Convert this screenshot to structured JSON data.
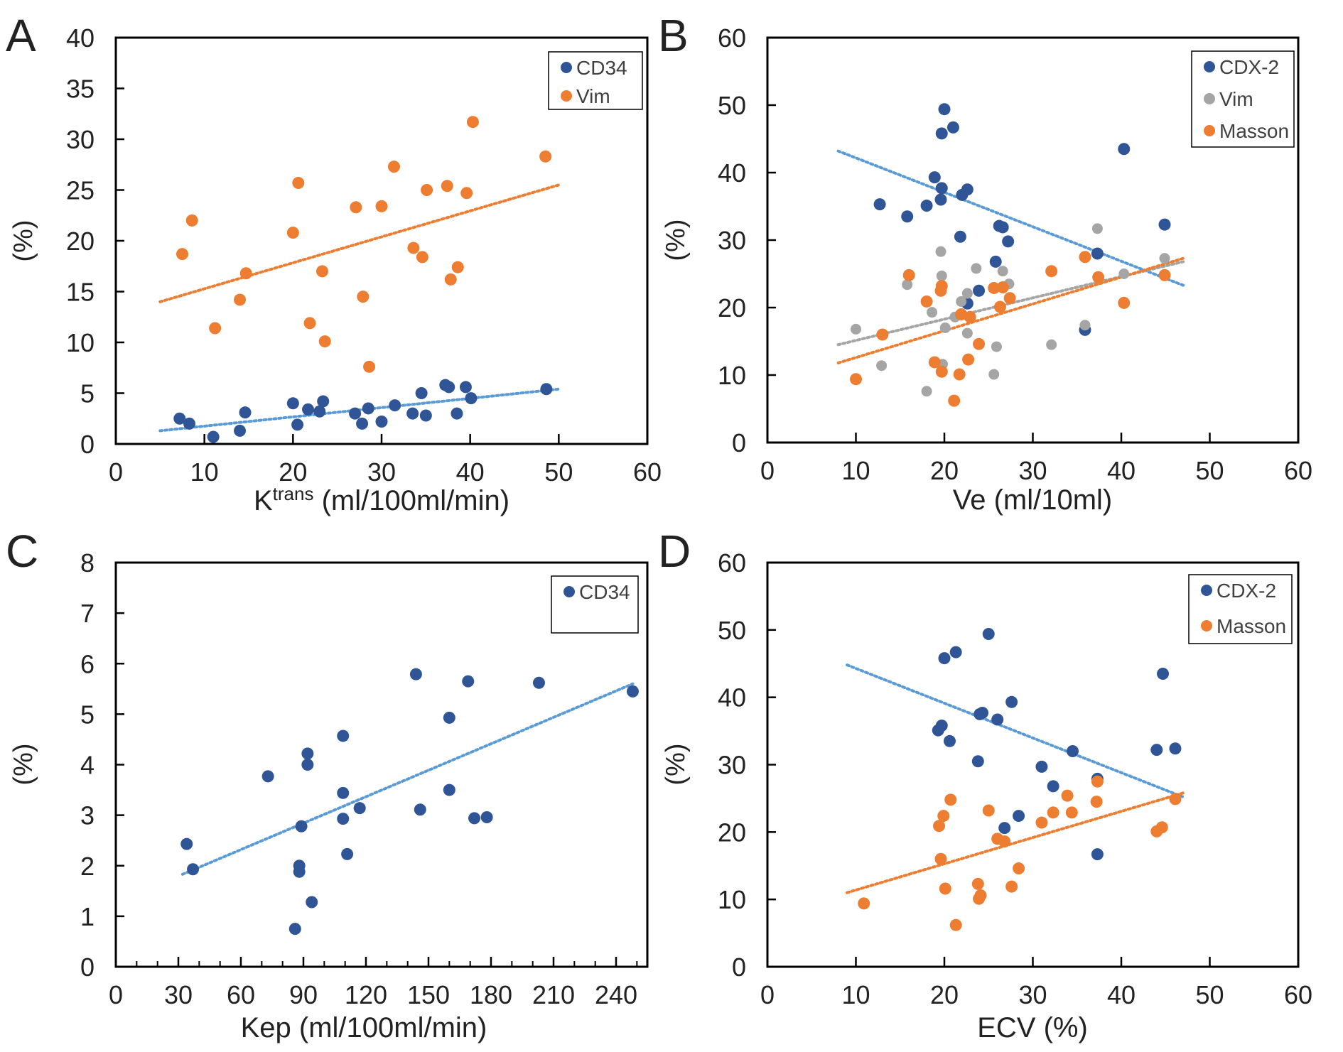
{
  "figure": {
    "panel_letters": [
      "A",
      "B",
      "C",
      "D"
    ]
  },
  "colors": {
    "blue": "#2F5597",
    "orange": "#ED7D31",
    "gray": "#A5A5A5",
    "trend_blue": "#5B9BD5",
    "trend_orange": "#ED7D31",
    "trend_gray": "#A5A5A5"
  },
  "chart_data": [
    {
      "panel": "A",
      "type": "scatter",
      "xlabel": "K",
      "xlabel_sup": "trans",
      "xlabel_rest": " (ml/100ml/min)",
      "ylabel": "(%)",
      "xlim": [
        0,
        60
      ],
      "ylim": [
        0,
        40
      ],
      "xticks": [
        0,
        10,
        20,
        30,
        40,
        50,
        60
      ],
      "yticks": [
        0,
        5,
        10,
        15,
        20,
        25,
        30,
        35,
        40
      ],
      "legend_position": "top-right",
      "series": [
        {
          "name": "CD34",
          "color": "blue",
          "points": [
            [
              7.2,
              2.5
            ],
            [
              8.3,
              2.0
            ],
            [
              11.0,
              0.7
            ],
            [
              14.0,
              1.3
            ],
            [
              14.6,
              3.1
            ],
            [
              20.0,
              4.0
            ],
            [
              20.5,
              1.9
            ],
            [
              21.7,
              3.4
            ],
            [
              23.0,
              3.2
            ],
            [
              23.4,
              4.2
            ],
            [
              27.0,
              3.0
            ],
            [
              27.8,
              2.0
            ],
            [
              28.5,
              3.5
            ],
            [
              30.0,
              2.2
            ],
            [
              31.5,
              3.8
            ],
            [
              33.5,
              3.0
            ],
            [
              34.5,
              5.0
            ],
            [
              35.0,
              2.8
            ],
            [
              37.2,
              5.8
            ],
            [
              37.6,
              5.6
            ],
            [
              38.5,
              3.0
            ],
            [
              39.5,
              5.6
            ],
            [
              40.1,
              4.5
            ],
            [
              48.6,
              5.4
            ]
          ],
          "trend": [
            [
              5,
              1.3
            ],
            [
              50,
              5.4
            ]
          ]
        },
        {
          "name": "Vim",
          "color": "orange",
          "points": [
            [
              7.5,
              18.7
            ],
            [
              8.6,
              22.0
            ],
            [
              11.2,
              11.4
            ],
            [
              14.0,
              14.2
            ],
            [
              14.7,
              16.8
            ],
            [
              20.0,
              20.8
            ],
            [
              20.6,
              25.7
            ],
            [
              21.9,
              11.9
            ],
            [
              23.3,
              17.0
            ],
            [
              23.6,
              10.1
            ],
            [
              27.1,
              23.3
            ],
            [
              27.9,
              14.5
            ],
            [
              28.6,
              7.6
            ],
            [
              30.0,
              23.4
            ],
            [
              31.4,
              27.3
            ],
            [
              33.6,
              19.3
            ],
            [
              34.6,
              18.4
            ],
            [
              35.1,
              25.0
            ],
            [
              37.4,
              25.4
            ],
            [
              37.8,
              16.2
            ],
            [
              38.6,
              17.4
            ],
            [
              39.6,
              24.7
            ],
            [
              40.3,
              31.7
            ],
            [
              48.5,
              28.3
            ]
          ],
          "trend": [
            [
              5,
              14.0
            ],
            [
              50,
              25.5
            ]
          ]
        }
      ]
    },
    {
      "panel": "B",
      "type": "scatter",
      "xlabel": "Ve (ml/10ml)",
      "ylabel": "(%)",
      "xlim": [
        0,
        60
      ],
      "ylim": [
        0,
        60
      ],
      "xticks": [
        0,
        10,
        20,
        30,
        40,
        50,
        60
      ],
      "yticks": [
        0,
        10,
        20,
        30,
        40,
        50,
        60
      ],
      "legend_position": "top-right",
      "series": [
        {
          "name": "CDX-2",
          "color": "blue",
          "points": [
            [
              12.7,
              35.3
            ],
            [
              15.8,
              33.5
            ],
            [
              18.0,
              35.1
            ],
            [
              18.9,
              39.3
            ],
            [
              19.6,
              36.0
            ],
            [
              19.7,
              45.8
            ],
            [
              19.7,
              37.7
            ],
            [
              20.0,
              49.4
            ],
            [
              21.0,
              46.7
            ],
            [
              22.0,
              36.7
            ],
            [
              22.6,
              37.5
            ],
            [
              21.8,
              30.5
            ],
            [
              23.9,
              22.5
            ],
            [
              22.6,
              20.6
            ],
            [
              25.8,
              26.8
            ],
            [
              26.2,
              32.1
            ],
            [
              26.6,
              31.9
            ],
            [
              27.2,
              29.8
            ],
            [
              35.9,
              16.7
            ],
            [
              37.3,
              28.0
            ],
            [
              40.3,
              43.5
            ],
            [
              44.9,
              32.3
            ]
          ],
          "trend": [
            [
              8,
              43.2
            ],
            [
              47,
              23.3
            ]
          ]
        },
        {
          "name": "Vim",
          "color": "gray",
          "points": [
            [
              10.0,
              16.8
            ],
            [
              12.9,
              11.4
            ],
            [
              15.8,
              23.4
            ],
            [
              18.0,
              7.6
            ],
            [
              18.6,
              19.3
            ],
            [
              19.6,
              28.3
            ],
            [
              19.7,
              24.7
            ],
            [
              19.8,
              11.6
            ],
            [
              20.1,
              17.0
            ],
            [
              21.2,
              18.6
            ],
            [
              21.9,
              20.9
            ],
            [
              22.6,
              16.2
            ],
            [
              22.6,
              22.1
            ],
            [
              23.6,
              25.8
            ],
            [
              25.6,
              10.1
            ],
            [
              25.9,
              14.2
            ],
            [
              26.6,
              25.4
            ],
            [
              27.3,
              23.5
            ],
            [
              32.1,
              14.5
            ],
            [
              35.9,
              17.4
            ],
            [
              37.3,
              31.7
            ],
            [
              40.3,
              25.0
            ],
            [
              44.9,
              27.3
            ]
          ],
          "trend": [
            [
              8,
              14.5
            ],
            [
              47,
              26.8
            ]
          ]
        },
        {
          "name": "Masson",
          "color": "orange",
          "points": [
            [
              10.0,
              9.4
            ],
            [
              13.0,
              16.0
            ],
            [
              16.0,
              24.8
            ],
            [
              18.0,
              20.9
            ],
            [
              18.9,
              11.9
            ],
            [
              19.6,
              22.5
            ],
            [
              19.7,
              10.5
            ],
            [
              19.7,
              23.2
            ],
            [
              21.1,
              6.2
            ],
            [
              21.7,
              10.1
            ],
            [
              21.9,
              19.0
            ],
            [
              22.7,
              12.3
            ],
            [
              22.9,
              18.6
            ],
            [
              23.9,
              14.6
            ],
            [
              25.6,
              22.9
            ],
            [
              26.3,
              20.1
            ],
            [
              26.6,
              23.0
            ],
            [
              27.4,
              21.4
            ],
            [
              32.1,
              25.4
            ],
            [
              35.9,
              27.5
            ],
            [
              37.4,
              24.5
            ],
            [
              40.3,
              20.7
            ],
            [
              44.9,
              24.8
            ]
          ],
          "trend": [
            [
              8,
              11.8
            ],
            [
              47,
              27.3
            ]
          ]
        }
      ]
    },
    {
      "panel": "C",
      "type": "scatter",
      "xlabel": "Kep (ml/100ml/min)",
      "ylabel": "(%)",
      "xlim": [
        0,
        255
      ],
      "ylim": [
        0,
        8
      ],
      "xticks": [
        0,
        30,
        60,
        90,
        120,
        150,
        180,
        210,
        240
      ],
      "xminor_step": 10,
      "yticks": [
        0,
        1,
        2,
        3,
        4,
        5,
        6,
        7,
        8
      ],
      "legend_position": "top-right",
      "series": [
        {
          "name": "CD34",
          "color": "blue",
          "points": [
            [
              34,
              2.43
            ],
            [
              37,
              1.93
            ],
            [
              73,
              3.77
            ],
            [
              86,
              0.75
            ],
            [
              88,
              1.88
            ],
            [
              88,
              2.0
            ],
            [
              89,
              2.78
            ],
            [
              92,
              4.22
            ],
            [
              92,
              4.0
            ],
            [
              94,
              1.28
            ],
            [
              109,
              4.57
            ],
            [
              109,
              3.44
            ],
            [
              109,
              2.93
            ],
            [
              111,
              2.23
            ],
            [
              117,
              3.14
            ],
            [
              144,
              5.79
            ],
            [
              146,
              3.11
            ],
            [
              160,
              4.93
            ],
            [
              160,
              3.5
            ],
            [
              169,
              5.65
            ],
            [
              172,
              2.94
            ],
            [
              178,
              2.96
            ],
            [
              203,
              5.62
            ],
            [
              248,
              5.45
            ]
          ],
          "trend": [
            [
              32,
              1.83
            ],
            [
              248,
              5.6
            ]
          ]
        }
      ]
    },
    {
      "panel": "D",
      "type": "scatter",
      "xlabel": "ECV (%)",
      "ylabel": "(%)",
      "xlim": [
        0,
        60
      ],
      "ylim": [
        0,
        60
      ],
      "xticks": [
        0,
        10,
        20,
        30,
        40,
        50,
        60
      ],
      "yticks": [
        0,
        10,
        20,
        30,
        40,
        50,
        60
      ],
      "legend_position": "top-right",
      "series": [
        {
          "name": "CDX-2",
          "color": "blue",
          "points": [
            [
              19.3,
              35.1
            ],
            [
              19.7,
              35.8
            ],
            [
              20.0,
              45.8
            ],
            [
              20.6,
              33.5
            ],
            [
              21.3,
              46.7
            ],
            [
              23.8,
              30.5
            ],
            [
              24.0,
              37.5
            ],
            [
              24.3,
              37.7
            ],
            [
              25.0,
              49.4
            ],
            [
              26.0,
              36.7
            ],
            [
              26.8,
              20.6
            ],
            [
              27.6,
              39.3
            ],
            [
              28.4,
              22.4
            ],
            [
              31.0,
              29.7
            ],
            [
              32.3,
              26.8
            ],
            [
              34.5,
              32.0
            ],
            [
              37.3,
              27.9
            ],
            [
              37.3,
              16.7
            ],
            [
              44.0,
              32.2
            ],
            [
              44.7,
              43.5
            ],
            [
              46.1,
              32.4
            ]
          ],
          "trend": [
            [
              9,
              44.8
            ],
            [
              47,
              25.2
            ]
          ]
        },
        {
          "name": "Masson",
          "color": "orange",
          "points": [
            [
              10.9,
              9.4
            ],
            [
              19.4,
              20.9
            ],
            [
              19.6,
              16.0
            ],
            [
              19.9,
              22.4
            ],
            [
              20.1,
              11.6
            ],
            [
              20.7,
              24.8
            ],
            [
              21.3,
              6.2
            ],
            [
              23.8,
              12.3
            ],
            [
              23.9,
              10.1
            ],
            [
              24.1,
              10.6
            ],
            [
              25.0,
              23.2
            ],
            [
              26.0,
              19.0
            ],
            [
              26.8,
              18.6
            ],
            [
              27.6,
              11.9
            ],
            [
              28.4,
              14.6
            ],
            [
              31.0,
              21.4
            ],
            [
              32.3,
              22.9
            ],
            [
              33.9,
              25.4
            ],
            [
              34.4,
              22.9
            ],
            [
              37.2,
              24.5
            ],
            [
              37.3,
              27.5
            ],
            [
              44.0,
              20.1
            ],
            [
              44.6,
              20.7
            ],
            [
              46.1,
              24.9
            ]
          ],
          "trend": [
            [
              9,
              11.0
            ],
            [
              47,
              25.8
            ]
          ]
        }
      ]
    }
  ]
}
